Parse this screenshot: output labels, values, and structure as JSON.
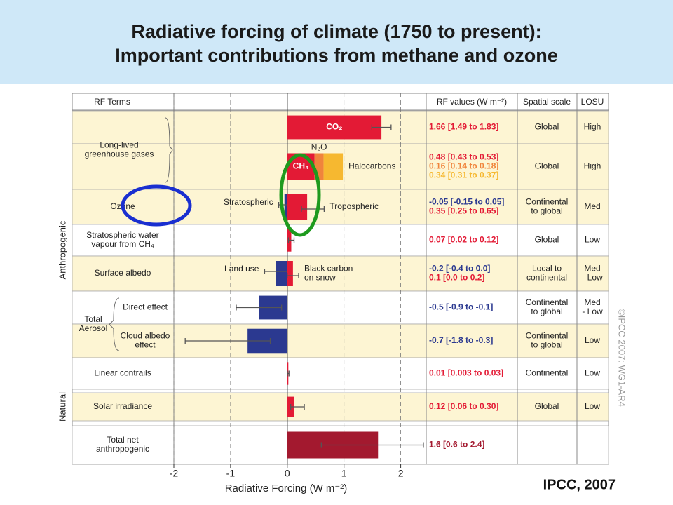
{
  "chart_data": {
    "type": "forcing-bar",
    "title": [
      "Radiative forcing of climate (1750 to present):",
      "Important contributions from methane and ozone"
    ],
    "columns": [
      "RF Terms",
      "RF values (W m⁻²)",
      "Spatial scale",
      "LOSU"
    ],
    "xlabel": "Radiative Forcing (W m⁻²)",
    "xlim": [
      -2,
      2.45
    ],
    "xticks": [
      -2,
      -1,
      0,
      1,
      2
    ],
    "grid": true,
    "sections": [
      {
        "name": "Anthropogenic",
        "rows": [
          {
            "term": [
              "Long-lived",
              "greenhouse gases"
            ],
            "parts": [
              {
                "bars": [
                  {
                    "name": "CO₂",
                    "value": 1.66,
                    "low": 1.49,
                    "high": 1.83,
                    "color": "#e31a35",
                    "label": "1.66 [1.49 to 1.83]"
                  }
                ],
                "scale": "Global",
                "losu": "High"
              },
              {
                "stacked": true,
                "bars": [
                  {
                    "name": "CH₄",
                    "value": 0.48,
                    "color": "#e31a35",
                    "label": "0.48 [0.43 to 0.53]"
                  },
                  {
                    "name": "N₂O",
                    "value": 0.16,
                    "color": "#f0843c",
                    "label": "0.16 [0.14 to 0.18]"
                  },
                  {
                    "name": "Halocarbons",
                    "value": 0.34,
                    "color": "#f6b830",
                    "label": "0.34 [0.31 to 0.37]"
                  }
                ],
                "scale": "Global",
                "losu": "High"
              }
            ]
          },
          {
            "term": "Ozone",
            "bars": [
              {
                "name": "Stratospheric",
                "value": -0.05,
                "low": -0.15,
                "high": 0.05,
                "color": "#2b3990",
                "label": "-0.05 [-0.15 to 0.05]"
              },
              {
                "name": "Tropospheric",
                "value": 0.35,
                "low": 0.25,
                "high": 0.65,
                "color": "#e31a35",
                "label": "0.35 [0.25 to 0.65]"
              }
            ],
            "scale": [
              "Continental",
              "to global"
            ],
            "losu": "Med"
          },
          {
            "term": [
              "Stratospheric water",
              "vapour from CH₄"
            ],
            "bars": [
              {
                "value": 0.07,
                "low": 0.02,
                "high": 0.12,
                "color": "#e31a35",
                "label": "0.07 [0.02 to 0.12]"
              }
            ],
            "scale": "Global",
            "losu": "Low"
          },
          {
            "term": "Surface albedo",
            "bars": [
              {
                "name": "Land use",
                "value": -0.2,
                "low": -0.4,
                "high": 0.0,
                "color": "#2b3990",
                "label": "-0.2 [-0.4 to 0.0]"
              },
              {
                "name": [
                  "Black carbon",
                  "on snow"
                ],
                "value": 0.1,
                "low": 0.0,
                "high": 0.2,
                "color": "#e31a35",
                "label": "0.1 [0.0 to 0.2]"
              }
            ],
            "scale": [
              "Local to",
              "continental"
            ],
            "losu": [
              "Med",
              "- Low"
            ]
          },
          {
            "term": [
              "Total",
              "Aerosol"
            ],
            "parts": [
              {
                "term": "Direct effect",
                "bars": [
                  {
                    "value": -0.5,
                    "low": -0.9,
                    "high": -0.1,
                    "color": "#2b3990",
                    "label": "-0.5 [-0.9 to -0.1]"
                  }
                ],
                "scale": [
                  "Continental",
                  "to global"
                ],
                "losu": [
                  "Med",
                  "- Low"
                ]
              },
              {
                "term": [
                  "Cloud albedo",
                  "effect"
                ],
                "bars": [
                  {
                    "value": -0.7,
                    "low": -1.8,
                    "high": -0.3,
                    "color": "#2b3990",
                    "label": "-0.7 [-1.8 to -0.3]"
                  }
                ],
                "scale": [
                  "Continental",
                  "to global"
                ],
                "losu": "Low"
              }
            ]
          },
          {
            "term": "Linear contrails",
            "bars": [
              {
                "value": 0.01,
                "low": 0.003,
                "high": 0.03,
                "color": "#e31a35",
                "label": "0.01 [0.003 to 0.03]"
              }
            ],
            "scale": "Continental",
            "losu": "Low"
          }
        ]
      },
      {
        "name": "Natural",
        "rows": [
          {
            "term": "Solar irradiance",
            "bars": [
              {
                "value": 0.12,
                "low": 0.06,
                "high": 0.3,
                "color": "#e31a35",
                "label": "0.12 [0.06 to 0.30]"
              }
            ],
            "scale": "Global",
            "losu": "Low"
          }
        ]
      },
      {
        "rows": [
          {
            "term": [
              "Total net",
              "anthropogenic"
            ],
            "bars": [
              {
                "value": 1.6,
                "low": 0.6,
                "high": 2.4,
                "color": "#a3192f",
                "label": "1.6 [0.6 to 2.4]"
              }
            ]
          }
        ]
      }
    ],
    "copyright": "©IPCC 2007: WG1-AR4",
    "source": "IPCC, 2007"
  }
}
